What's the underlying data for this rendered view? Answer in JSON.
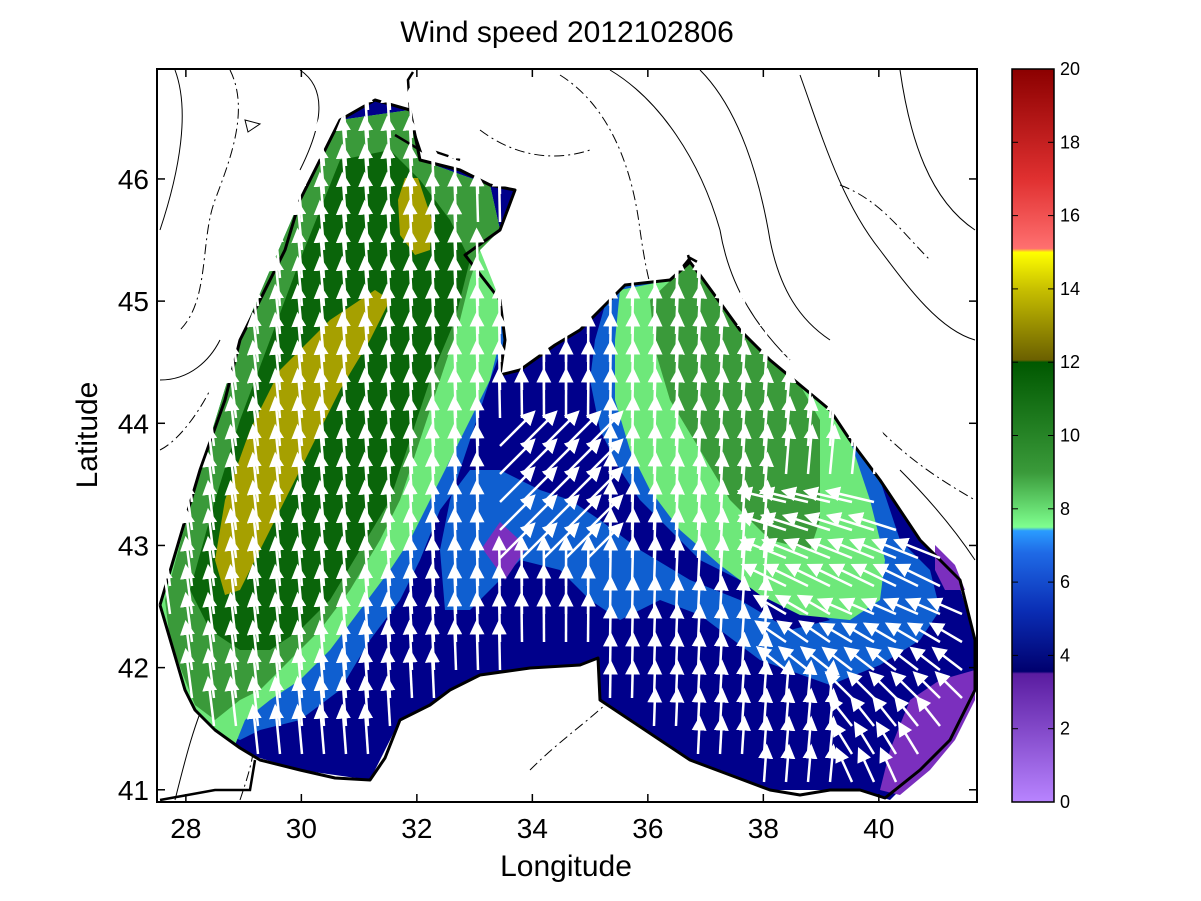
{
  "chart_data": {
    "type": "heatmap",
    "title": "Wind speed 2012102806",
    "xlabel": "Longitude",
    "ylabel": "Latitude",
    "xlim": [
      27.5,
      41.7
    ],
    "ylim": [
      40.9,
      46.9
    ],
    "x_ticks": [
      28,
      30,
      32,
      34,
      36,
      38,
      40
    ],
    "y_ticks": [
      41,
      42,
      43,
      44,
      45,
      46
    ],
    "colorbar": {
      "min": 0,
      "max": 20,
      "ticks": [
        0,
        2,
        4,
        6,
        8,
        10,
        12,
        14,
        16,
        18,
        20
      ],
      "units": ""
    },
    "wind_speed_regions": [
      {
        "level": "3-4",
        "color": "#7b2fbe",
        "centers": [
          [
            33.6,
            42.95
          ],
          [
            40.9,
            41.6
          ]
        ]
      },
      {
        "level": "4-6",
        "color": "#00008b",
        "centers": [
          [
            34.2,
            43.3
          ],
          [
            37.5,
            41.6
          ]
        ]
      },
      {
        "level": "6-8",
        "color": "#0f5fd0",
        "centers": [
          [
            32.6,
            42.5
          ],
          [
            39.5,
            42.6
          ]
        ]
      },
      {
        "level": "8-9",
        "color": "#6ee87a",
        "centers": [
          [
            31.5,
            42.3
          ],
          [
            37.2,
            43.5
          ]
        ]
      },
      {
        "level": "9-11",
        "color": "#3a9a3a",
        "centers": [
          [
            29.0,
            45.5
          ],
          [
            37.5,
            44.2
          ]
        ]
      },
      {
        "level": "11-12",
        "color": "#0a650a",
        "centers": [
          [
            30.5,
            43.0
          ]
        ]
      },
      {
        "level": "12-14",
        "color": "#a6a000",
        "centers": [
          [
            29.8,
            43.6
          ],
          [
            32.0,
            45.6
          ]
        ]
      }
    ],
    "grid": false,
    "legend": "colorbar right"
  }
}
